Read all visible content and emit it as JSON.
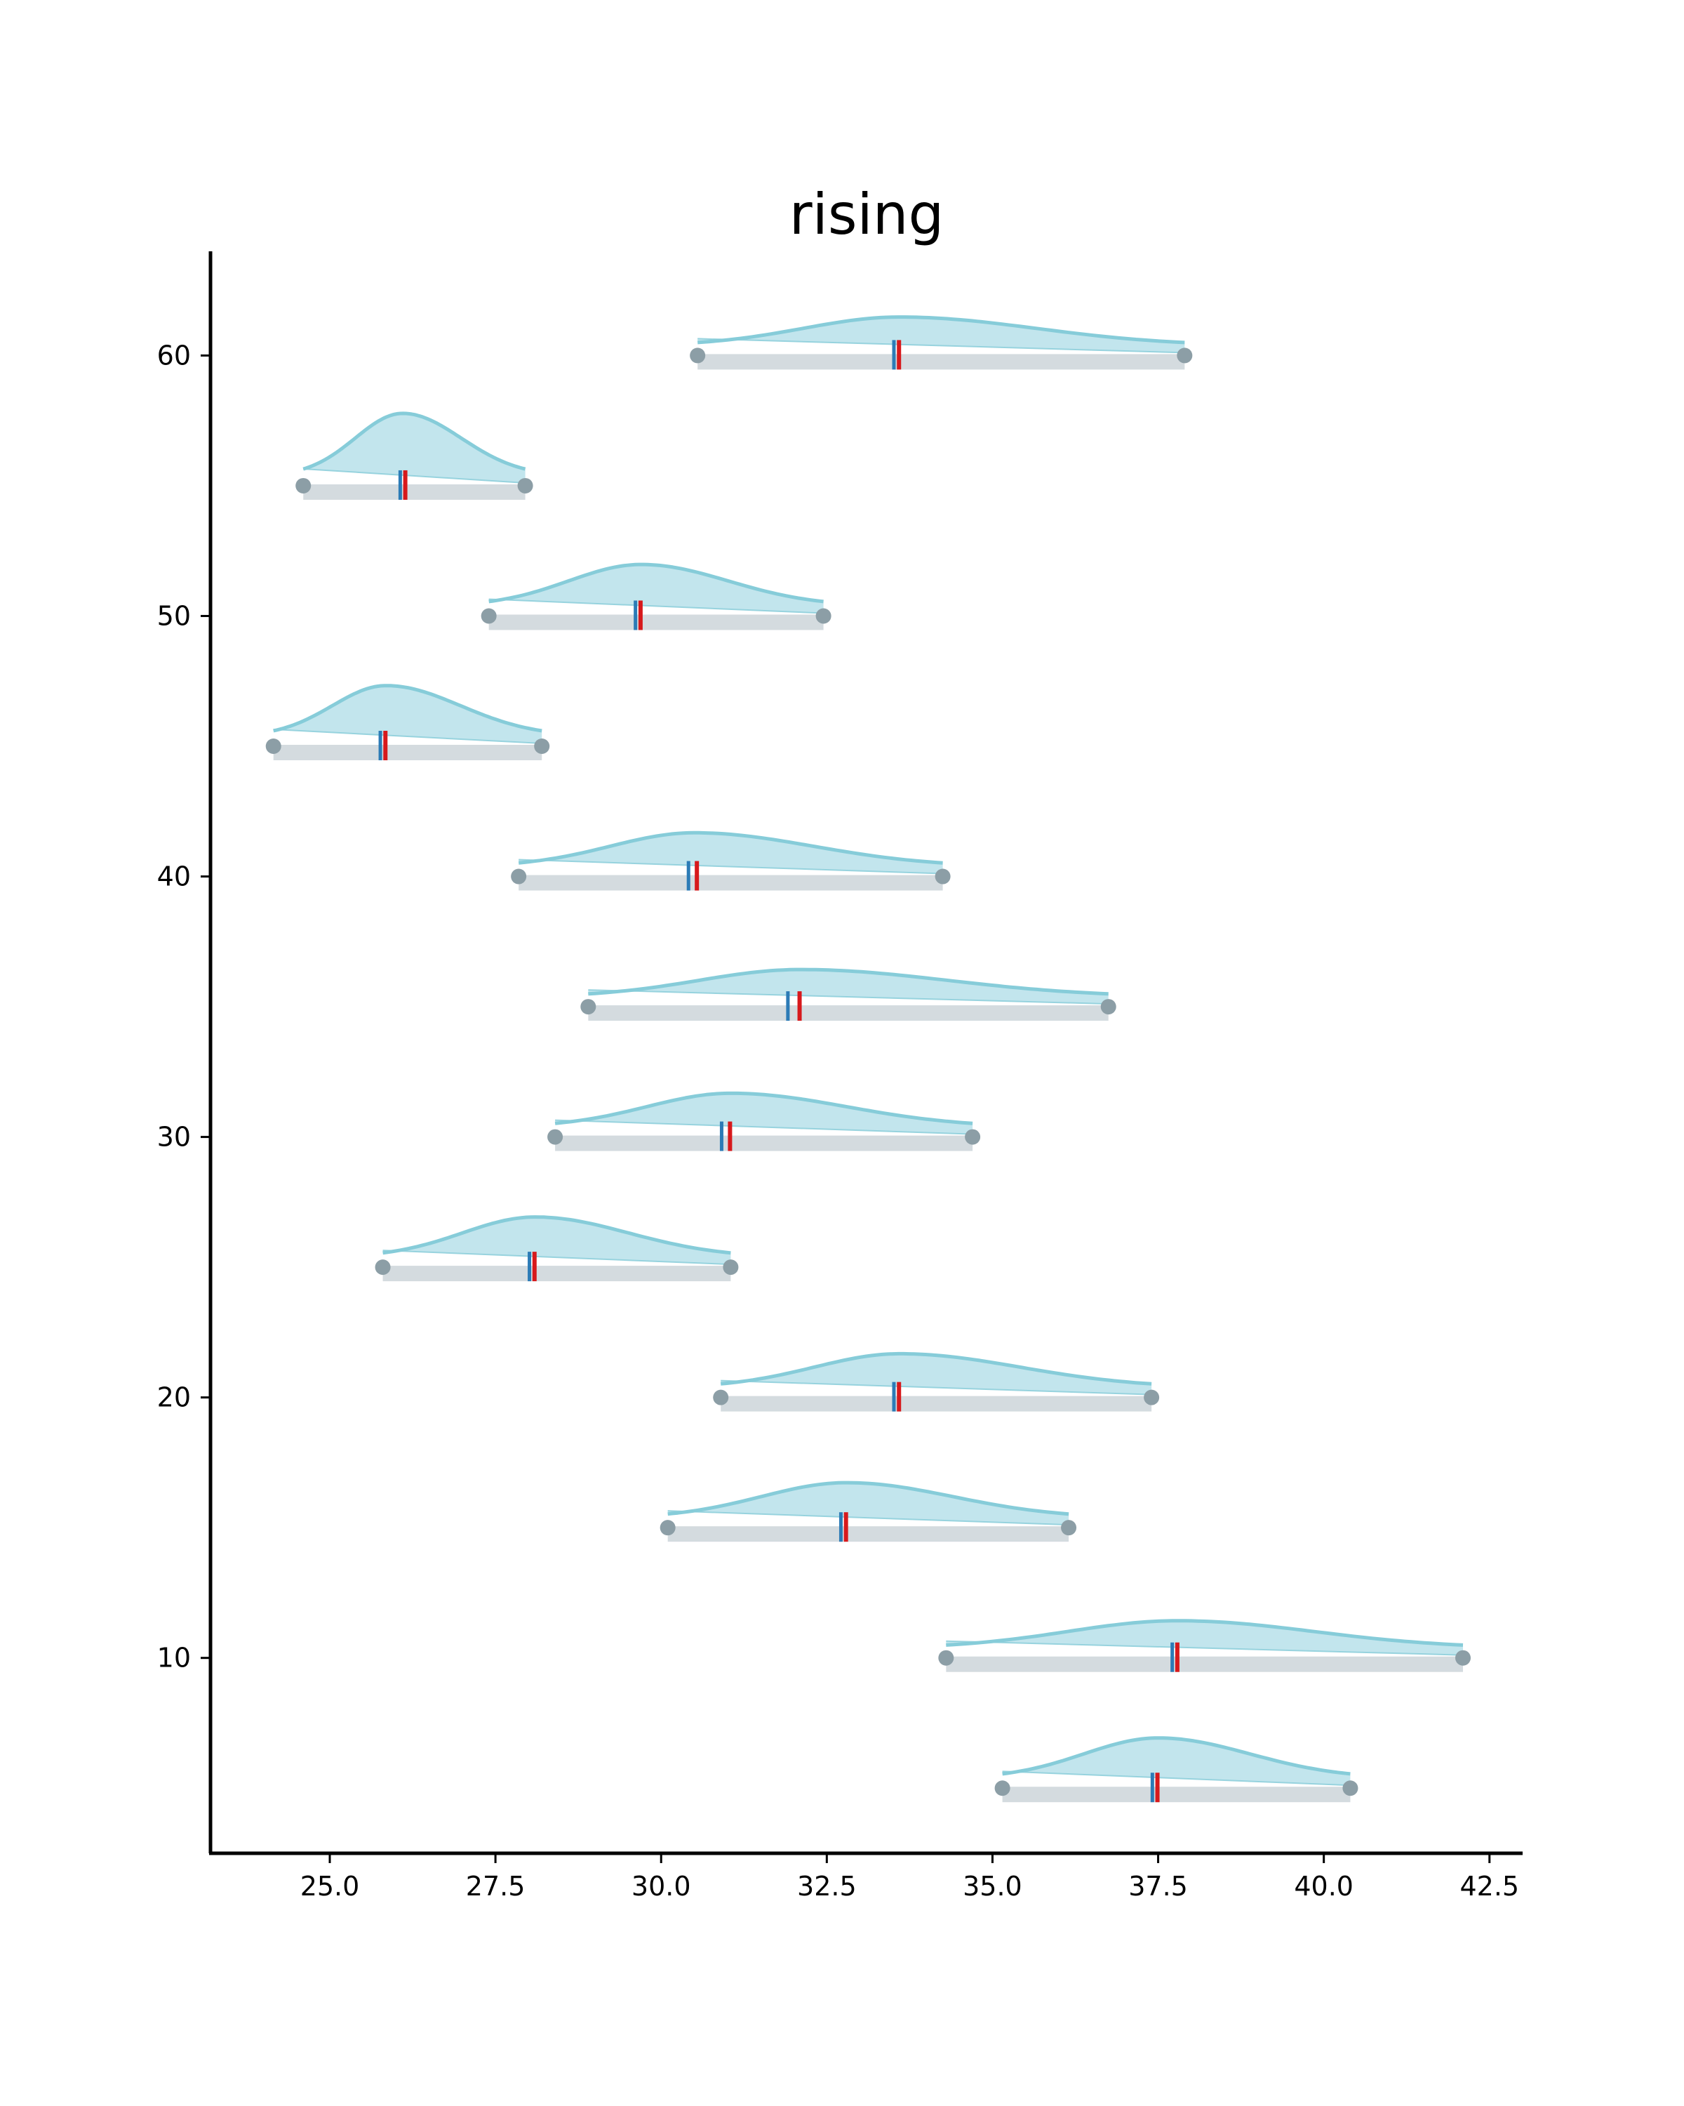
{
  "chart_data": {
    "type": "ridge",
    "title": "rising",
    "xlabel": "",
    "ylabel": "",
    "xlim": [
      23.2,
      43.0
    ],
    "ylim": [
      2.5,
      64.0
    ],
    "xticks": [
      25.0,
      27.5,
      30.0,
      32.5,
      35.0,
      37.5,
      40.0,
      42.5
    ],
    "xtick_labels": [
      "25.0",
      "27.5",
      "30.0",
      "32.5",
      "35.0",
      "37.5",
      "40.0",
      "42.5"
    ],
    "yticks": [
      10,
      20,
      30,
      40,
      50,
      60
    ],
    "ytick_labels": [
      "10",
      "20",
      "30",
      "40",
      "50",
      "60"
    ],
    "grid": false,
    "series": [
      {
        "y": 5,
        "min": 35.15,
        "max": 40.4,
        "mean": 37.5,
        "median": 37.45,
        "peak": 37.5,
        "height": 1.55
      },
      {
        "y": 10,
        "min": 34.3,
        "max": 42.1,
        "mean": 37.8,
        "median": 37.75,
        "peak": 37.8,
        "height": 1.05
      },
      {
        "y": 15,
        "min": 30.1,
        "max": 36.15,
        "mean": 32.8,
        "median": 32.75,
        "peak": 32.8,
        "height": 1.35
      },
      {
        "y": 20,
        "min": 30.9,
        "max": 37.4,
        "mean": 33.6,
        "median": 33.55,
        "peak": 33.6,
        "height": 1.3
      },
      {
        "y": 25,
        "min": 25.8,
        "max": 31.05,
        "mean": 28.1,
        "median": 28.05,
        "peak": 28.1,
        "height": 1.55
      },
      {
        "y": 30,
        "min": 28.4,
        "max": 34.7,
        "mean": 31.05,
        "median": 30.95,
        "peak": 31.05,
        "height": 1.3
      },
      {
        "y": 35,
        "min": 28.9,
        "max": 36.75,
        "mean": 32.1,
        "median": 31.95,
        "peak": 32.1,
        "height": 1.05
      },
      {
        "y": 40,
        "min": 27.85,
        "max": 34.25,
        "mean": 30.55,
        "median": 30.45,
        "peak": 30.5,
        "height": 1.3
      },
      {
        "y": 45,
        "min": 24.15,
        "max": 28.2,
        "mean": 25.85,
        "median": 25.8,
        "peak": 25.85,
        "height": 1.95
      },
      {
        "y": 50,
        "min": 27.4,
        "max": 32.45,
        "mean": 29.7,
        "median": 29.65,
        "peak": 29.7,
        "height": 1.6
      },
      {
        "y": 55,
        "min": 24.6,
        "max": 27.95,
        "mean": 26.15,
        "median": 26.1,
        "peak": 26.1,
        "height": 2.4
      },
      {
        "y": 60,
        "min": 30.55,
        "max": 37.9,
        "mean": 33.6,
        "median": 33.55,
        "peak": 33.6,
        "height": 1.1
      }
    ],
    "colors": {
      "density_fill": "#bfe4ec",
      "density_line": "#86ccd9",
      "range_bar": "#d4dbdf",
      "endpoint": "#8c9ea6",
      "mean_marker": "#d7191c",
      "median_marker": "#2c7bb6",
      "axis": "#000000"
    }
  }
}
